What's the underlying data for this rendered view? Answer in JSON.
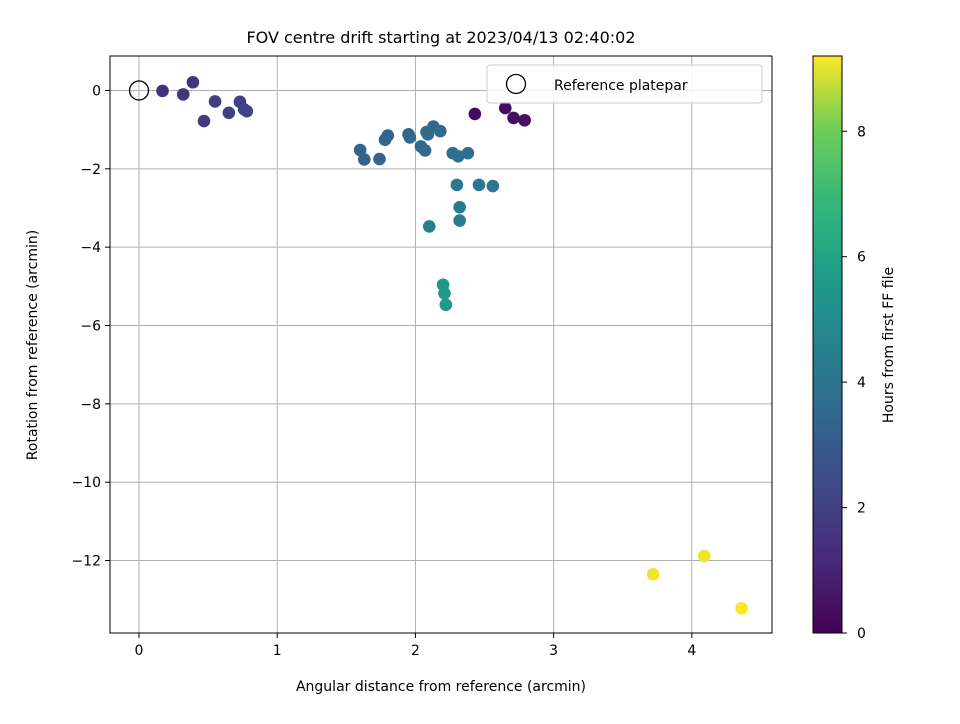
{
  "chart_data": {
    "type": "scatter",
    "title": "FOV centre drift starting at 2023/04/13 02:40:02",
    "xlabel": "Angular distance from reference (arcmin)",
    "ylabel": "Rotation from reference (arcmin)",
    "xlim": [
      -0.21,
      4.58
    ],
    "ylim": [
      -13.85,
      0.88
    ],
    "xticks": [
      0,
      1,
      2,
      3,
      4
    ],
    "yticks": [
      0,
      -2,
      -4,
      -6,
      -8,
      -10,
      -12
    ],
    "xtick_labels": [
      "0",
      "1",
      "2",
      "3",
      "4"
    ],
    "ytick_labels": [
      "0",
      "−2",
      "−4",
      "−6",
      "−8",
      "−10",
      "−12"
    ],
    "grid": true,
    "legend": {
      "location": "top-right",
      "entries": [
        "Reference platepar"
      ]
    },
    "reference_point": {
      "x": 0,
      "y": 0,
      "marker": "open-circle"
    },
    "colorbar": {
      "label": "Hours from first FF file",
      "colormap": "viridis",
      "range": [
        0,
        9.2
      ],
      "ticks": [
        0,
        2,
        4,
        6,
        8
      ],
      "tick_labels": [
        "0",
        "2",
        "4",
        "6",
        "8"
      ]
    },
    "points": [
      {
        "x": 2.43,
        "y": -0.6,
        "c": 0.3
      },
      {
        "x": 2.65,
        "y": -0.45,
        "c": 0.35
      },
      {
        "x": 2.71,
        "y": -0.7,
        "c": 0.4
      },
      {
        "x": 2.79,
        "y": -0.76,
        "c": 0.45
      },
      {
        "x": 0.17,
        "y": -0.01,
        "c": 1.5
      },
      {
        "x": 0.32,
        "y": -0.1,
        "c": 1.6
      },
      {
        "x": 0.39,
        "y": 0.21,
        "c": 1.5
      },
      {
        "x": 0.47,
        "y": -0.78,
        "c": 1.8
      },
      {
        "x": 0.55,
        "y": -0.28,
        "c": 1.9
      },
      {
        "x": 0.65,
        "y": -0.57,
        "c": 2.0
      },
      {
        "x": 0.73,
        "y": -0.29,
        "c": 2.0
      },
      {
        "x": 0.76,
        "y": -0.48,
        "c": 2.1
      },
      {
        "x": 0.78,
        "y": -0.53,
        "c": 2.1
      },
      {
        "x": 1.6,
        "y": -1.52,
        "c": 3.2
      },
      {
        "x": 1.63,
        "y": -1.76,
        "c": 3.2
      },
      {
        "x": 1.74,
        "y": -1.75,
        "c": 3.3
      },
      {
        "x": 1.78,
        "y": -1.26,
        "c": 3.3
      },
      {
        "x": 1.8,
        "y": -1.15,
        "c": 3.3
      },
      {
        "x": 1.95,
        "y": -1.12,
        "c": 3.4
      },
      {
        "x": 1.96,
        "y": -1.2,
        "c": 3.4
      },
      {
        "x": 2.04,
        "y": -1.43,
        "c": 3.5
      },
      {
        "x": 2.07,
        "y": -1.53,
        "c": 3.5
      },
      {
        "x": 2.08,
        "y": -1.06,
        "c": 3.6
      },
      {
        "x": 2.09,
        "y": -1.12,
        "c": 3.6
      },
      {
        "x": 2.13,
        "y": -0.92,
        "c": 3.6
      },
      {
        "x": 2.18,
        "y": -1.04,
        "c": 3.6
      },
      {
        "x": 2.27,
        "y": -1.6,
        "c": 3.7
      },
      {
        "x": 2.31,
        "y": -1.68,
        "c": 3.7
      },
      {
        "x": 2.38,
        "y": -1.6,
        "c": 3.7
      },
      {
        "x": 2.3,
        "y": -2.41,
        "c": 4.1
      },
      {
        "x": 2.46,
        "y": -2.41,
        "c": 4.1
      },
      {
        "x": 2.56,
        "y": -2.44,
        "c": 4.1
      },
      {
        "x": 2.32,
        "y": -2.98,
        "c": 4.3
      },
      {
        "x": 2.32,
        "y": -3.32,
        "c": 4.3
      },
      {
        "x": 2.1,
        "y": -3.47,
        "c": 4.5
      },
      {
        "x": 2.2,
        "y": -4.96,
        "c": 5.5
      },
      {
        "x": 2.21,
        "y": -5.18,
        "c": 5.5
      },
      {
        "x": 2.22,
        "y": -5.47,
        "c": 5.6
      },
      {
        "x": 3.72,
        "y": -12.35,
        "c": 9.1
      },
      {
        "x": 4.09,
        "y": -11.88,
        "c": 9.1
      },
      {
        "x": 4.36,
        "y": -13.22,
        "c": 9.2
      }
    ]
  }
}
